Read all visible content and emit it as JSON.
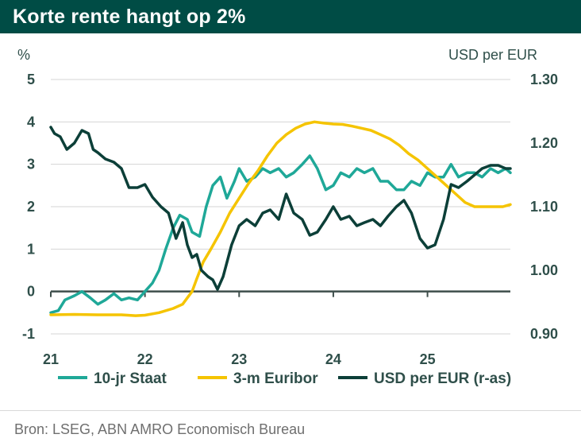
{
  "title": "Korte rente hangt op 2%",
  "source": "Bron: LSEG, ABN AMRO Economisch Bureau",
  "colors": {
    "header": "#004c45",
    "series_10jr": "#1fa898",
    "series_euribor": "#f5c400",
    "series_usd": "#0c3f38",
    "axis_text": "#2f4f4a",
    "grid": "#d4d4d4",
    "zero_line": "#3e4e4b"
  },
  "chart_data": {
    "type": "line",
    "title": "Korte rente hangt op 2%",
    "ylabel_left": "%",
    "ylabel_right": "USD per EUR",
    "ylim_left": [
      -1,
      5
    ],
    "ylim_right": [
      0.9,
      1.3
    ],
    "yticks_left": [
      "-1",
      "0",
      "1",
      "2",
      "3",
      "4",
      "5"
    ],
    "yticks_right": [
      "0.90",
      "1.00",
      "1.10",
      "1.20",
      "1.30"
    ],
    "xlim": [
      2021.0,
      2025.88
    ],
    "xticks": [
      "21",
      "22",
      "23",
      "24",
      "25"
    ],
    "grid": "horizontal",
    "legend_position": "bottom",
    "series": [
      {
        "name": "10-jr Staat",
        "axis": "left",
        "x": [
          2021.0,
          2021.08,
          2021.15,
          2021.25,
          2021.33,
          2021.42,
          2021.5,
          2021.58,
          2021.67,
          2021.75,
          2021.83,
          2021.92,
          2022.0,
          2022.08,
          2022.15,
          2022.22,
          2022.3,
          2022.37,
          2022.45,
          2022.5,
          2022.58,
          2022.65,
          2022.72,
          2022.8,
          2022.87,
          2022.95,
          2023.0,
          2023.08,
          2023.17,
          2023.25,
          2023.33,
          2023.42,
          2023.5,
          2023.58,
          2023.67,
          2023.75,
          2023.83,
          2023.92,
          2024.0,
          2024.08,
          2024.17,
          2024.25,
          2024.33,
          2024.42,
          2024.5,
          2024.58,
          2024.67,
          2024.75,
          2024.83,
          2024.92,
          2025.0,
          2025.08,
          2025.17,
          2025.25,
          2025.33,
          2025.42,
          2025.5,
          2025.58,
          2025.67,
          2025.75,
          2025.83,
          2025.88
        ],
        "values": [
          -0.5,
          -0.45,
          -0.2,
          -0.1,
          0.0,
          -0.15,
          -0.3,
          -0.2,
          -0.05,
          -0.2,
          -0.15,
          -0.2,
          0.0,
          0.2,
          0.5,
          1.0,
          1.5,
          1.8,
          1.7,
          1.4,
          1.3,
          2.0,
          2.5,
          2.7,
          2.2,
          2.6,
          2.9,
          2.6,
          2.7,
          2.9,
          2.8,
          2.9,
          2.7,
          2.8,
          3.0,
          3.2,
          2.9,
          2.4,
          2.5,
          2.8,
          2.7,
          2.9,
          2.8,
          2.9,
          2.6,
          2.6,
          2.4,
          2.4,
          2.6,
          2.5,
          2.8,
          2.7,
          2.7,
          3.0,
          2.7,
          2.8,
          2.8,
          2.7,
          2.9,
          2.8,
          2.9,
          2.8
        ]
      },
      {
        "name": "3-m Euribor",
        "axis": "left",
        "x": [
          2021.0,
          2021.25,
          2021.5,
          2021.75,
          2021.9,
          2022.0,
          2022.15,
          2022.3,
          2022.4,
          2022.45,
          2022.5,
          2022.55,
          2022.62,
          2022.7,
          2022.8,
          2022.9,
          2023.0,
          2023.1,
          2023.2,
          2023.3,
          2023.4,
          2023.5,
          2023.6,
          2023.7,
          2023.8,
          2023.9,
          2024.0,
          2024.1,
          2024.2,
          2024.3,
          2024.4,
          2024.5,
          2024.6,
          2024.7,
          2024.8,
          2024.9,
          2025.0,
          2025.1,
          2025.2,
          2025.3,
          2025.4,
          2025.5,
          2025.6,
          2025.7,
          2025.8,
          2025.88
        ],
        "values": [
          -0.55,
          -0.54,
          -0.55,
          -0.55,
          -0.57,
          -0.56,
          -0.5,
          -0.4,
          -0.3,
          -0.15,
          0.0,
          0.3,
          0.7,
          1.0,
          1.4,
          1.85,
          2.2,
          2.55,
          2.85,
          3.2,
          3.5,
          3.7,
          3.85,
          3.95,
          4.0,
          3.97,
          3.95,
          3.94,
          3.9,
          3.85,
          3.8,
          3.7,
          3.6,
          3.45,
          3.25,
          3.1,
          2.9,
          2.7,
          2.5,
          2.3,
          2.1,
          2.0,
          2.0,
          2.0,
          2.0,
          2.05
        ]
      },
      {
        "name": "USD per EUR (r-as)",
        "axis": "right",
        "x": [
          2021.0,
          2021.04,
          2021.1,
          2021.17,
          2021.25,
          2021.33,
          2021.4,
          2021.45,
          2021.5,
          2021.58,
          2021.67,
          2021.75,
          2021.83,
          2021.92,
          2022.0,
          2022.08,
          2022.17,
          2022.25,
          2022.33,
          2022.4,
          2022.45,
          2022.5,
          2022.55,
          2022.6,
          2022.67,
          2022.72,
          2022.77,
          2022.83,
          2022.92,
          2023.0,
          2023.08,
          2023.17,
          2023.25,
          2023.33,
          2023.42,
          2023.5,
          2023.58,
          2023.67,
          2023.75,
          2023.83,
          2023.92,
          2024.0,
          2024.08,
          2024.17,
          2024.25,
          2024.33,
          2024.42,
          2024.5,
          2024.58,
          2024.67,
          2024.75,
          2024.83,
          2024.92,
          2025.0,
          2025.08,
          2025.17,
          2025.25,
          2025.33,
          2025.42,
          2025.5,
          2025.58,
          2025.67,
          2025.75,
          2025.83,
          2025.88
        ],
        "values": [
          1.225,
          1.215,
          1.21,
          1.19,
          1.2,
          1.22,
          1.215,
          1.19,
          1.185,
          1.175,
          1.17,
          1.16,
          1.13,
          1.13,
          1.135,
          1.115,
          1.1,
          1.09,
          1.05,
          1.075,
          1.04,
          1.02,
          1.025,
          1.0,
          0.99,
          0.985,
          0.97,
          0.99,
          1.04,
          1.07,
          1.08,
          1.07,
          1.09,
          1.095,
          1.08,
          1.12,
          1.09,
          1.08,
          1.055,
          1.06,
          1.08,
          1.1,
          1.08,
          1.085,
          1.07,
          1.075,
          1.08,
          1.07,
          1.085,
          1.1,
          1.11,
          1.09,
          1.05,
          1.035,
          1.04,
          1.08,
          1.135,
          1.13,
          1.14,
          1.15,
          1.16,
          1.165,
          1.165,
          1.16,
          1.16
        ]
      }
    ]
  }
}
